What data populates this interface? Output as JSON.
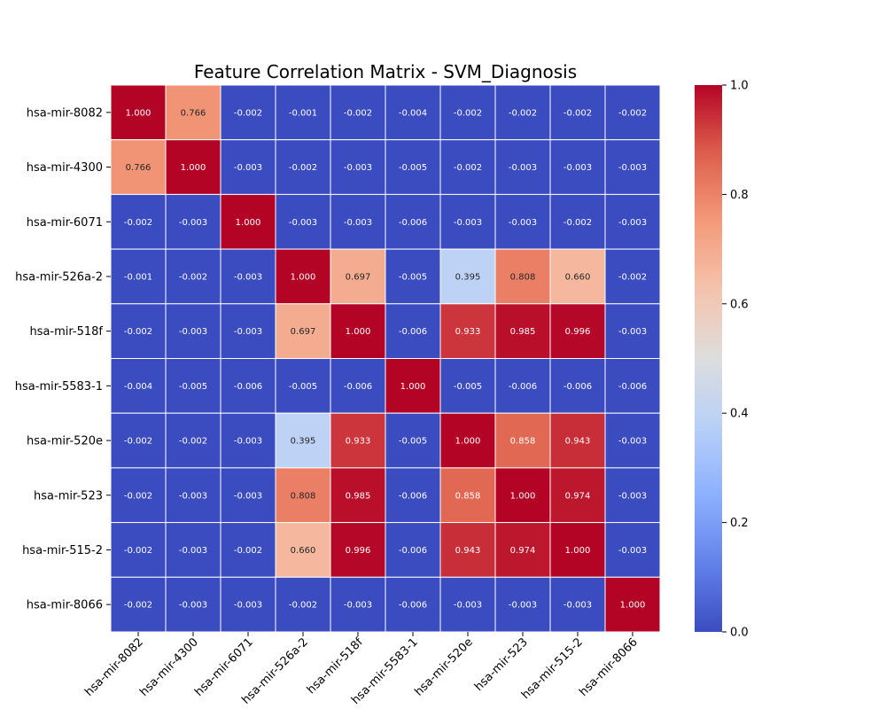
{
  "chart_data": {
    "type": "heatmap",
    "title": "Feature Correlation Matrix - SVM_Diagnosis",
    "xlabel": "",
    "ylabel": "",
    "colormap": "coolwarm",
    "colors": {
      "low": "#3b4cc0",
      "mid": "#dddddd",
      "high": "#b40426",
      "grid_line": "#ffffff"
    },
    "vmin": 0.0,
    "vmax": 1.0,
    "colorbar_ticks": [
      "0.0",
      "0.2",
      "0.4",
      "0.6",
      "0.8",
      "1.0"
    ],
    "labels": [
      "hsa-mir-8082",
      "hsa-mir-4300",
      "hsa-mir-6071",
      "hsa-mir-526a-2",
      "hsa-mir-518f",
      "hsa-mir-5583-1",
      "hsa-mir-520e",
      "hsa-mir-523",
      "hsa-mir-515-2",
      "hsa-mir-8066"
    ],
    "annotations": [
      [
        "1.000",
        "0.766",
        "-0.002",
        "-0.001",
        "-0.002",
        "-0.004",
        "-0.002",
        "-0.002",
        "-0.002",
        "-0.002"
      ],
      [
        "0.766",
        "1.000",
        "-0.003",
        "-0.002",
        "-0.003",
        "-0.005",
        "-0.002",
        "-0.003",
        "-0.003",
        "-0.003"
      ],
      [
        "-0.002",
        "-0.003",
        "1.000",
        "-0.003",
        "-0.003",
        "-0.006",
        "-0.003",
        "-0.003",
        "-0.002",
        "-0.003"
      ],
      [
        "-0.001",
        "-0.002",
        "-0.003",
        "1.000",
        "0.697",
        "-0.005",
        "0.395",
        "0.808",
        "0.660",
        "-0.002"
      ],
      [
        "-0.002",
        "-0.003",
        "-0.003",
        "0.697",
        "1.000",
        "-0.006",
        "0.933",
        "0.985",
        "0.996",
        "-0.003"
      ],
      [
        "-0.004",
        "-0.005",
        "-0.006",
        "-0.005",
        "-0.006",
        "1.000",
        "-0.005",
        "-0.006",
        "-0.006",
        "-0.006"
      ],
      [
        "-0.002",
        "-0.002",
        "-0.003",
        "0.395",
        "0.933",
        "-0.005",
        "1.000",
        "0.858",
        "0.943",
        "-0.003"
      ],
      [
        "-0.002",
        "-0.003",
        "-0.003",
        "0.808",
        "0.985",
        "-0.006",
        "0.858",
        "1.000",
        "0.974",
        "-0.003"
      ],
      [
        "-0.002",
        "-0.003",
        "-0.002",
        "0.660",
        "0.996",
        "-0.006",
        "0.943",
        "0.974",
        "1.000",
        "-0.003"
      ],
      [
        "-0.002",
        "-0.003",
        "-0.003",
        "-0.002",
        "-0.003",
        "-0.006",
        "-0.003",
        "-0.003",
        "-0.003",
        "1.000"
      ]
    ]
  }
}
